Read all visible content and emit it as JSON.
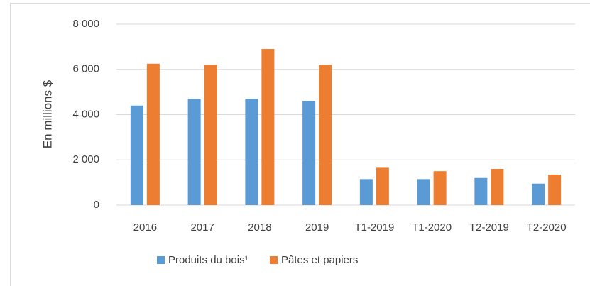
{
  "chart_data": {
    "type": "bar",
    "y_label": "En millions $",
    "categories": [
      "2016",
      "2017",
      "2018",
      "2019",
      "T1-2019",
      "T1-2020",
      "T2-2019",
      "T2-2020"
    ],
    "series": [
      {
        "name": "Produits du bois¹",
        "color": "#5b9bd5",
        "values": [
          4400,
          4700,
          4700,
          4600,
          1150,
          1150,
          1200,
          950
        ]
      },
      {
        "name": "Pâtes et papiers",
        "color": "#ed7d31",
        "values": [
          6250,
          6200,
          6900,
          6200,
          1650,
          1500,
          1600,
          1350
        ]
      }
    ],
    "ylim": [
      0,
      8000
    ],
    "yticks": [
      0,
      {
        "value": 2000,
        "label": "2 000"
      },
      {
        "value": 4000,
        "label": "4 000"
      },
      {
        "value": 6000,
        "label": "6 000"
      },
      {
        "value": 8000,
        "label": "8 000"
      }
    ],
    "grid": true,
    "legend": "bottom"
  }
}
